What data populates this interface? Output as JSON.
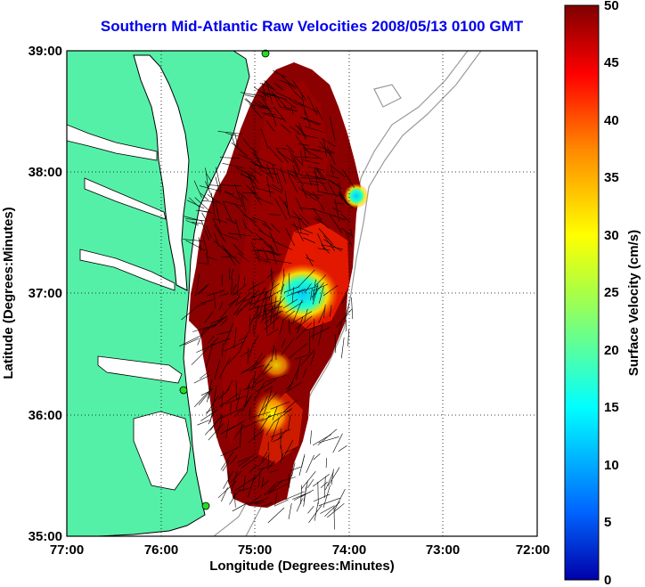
{
  "title": "Southern Mid-Atlantic Raw Velocities 2008/05/13 0100 GMT",
  "x_axis": {
    "label": "Longitude (Degrees:Minutes)",
    "ticks": [
      "77:00",
      "76:00",
      "75:00",
      "74:00",
      "73:00",
      "72:00"
    ]
  },
  "y_axis": {
    "label": "Latitude (Degrees:Minutes)",
    "ticks": [
      "39:00",
      "38:00",
      "37:00",
      "36:00",
      "35:00"
    ]
  },
  "colorbar": {
    "label": "Surface Velocity (cm/s)",
    "ticks": [
      "50",
      "45",
      "40",
      "35",
      "30",
      "25",
      "20",
      "15",
      "10",
      "5",
      "0"
    ],
    "range": [
      0,
      50
    ]
  },
  "colors": {
    "land": "#55f0a8",
    "coast": "#000000",
    "bathymetry": "#9a9a9a",
    "station": "#22dd22",
    "title": "#0000ee"
  }
}
